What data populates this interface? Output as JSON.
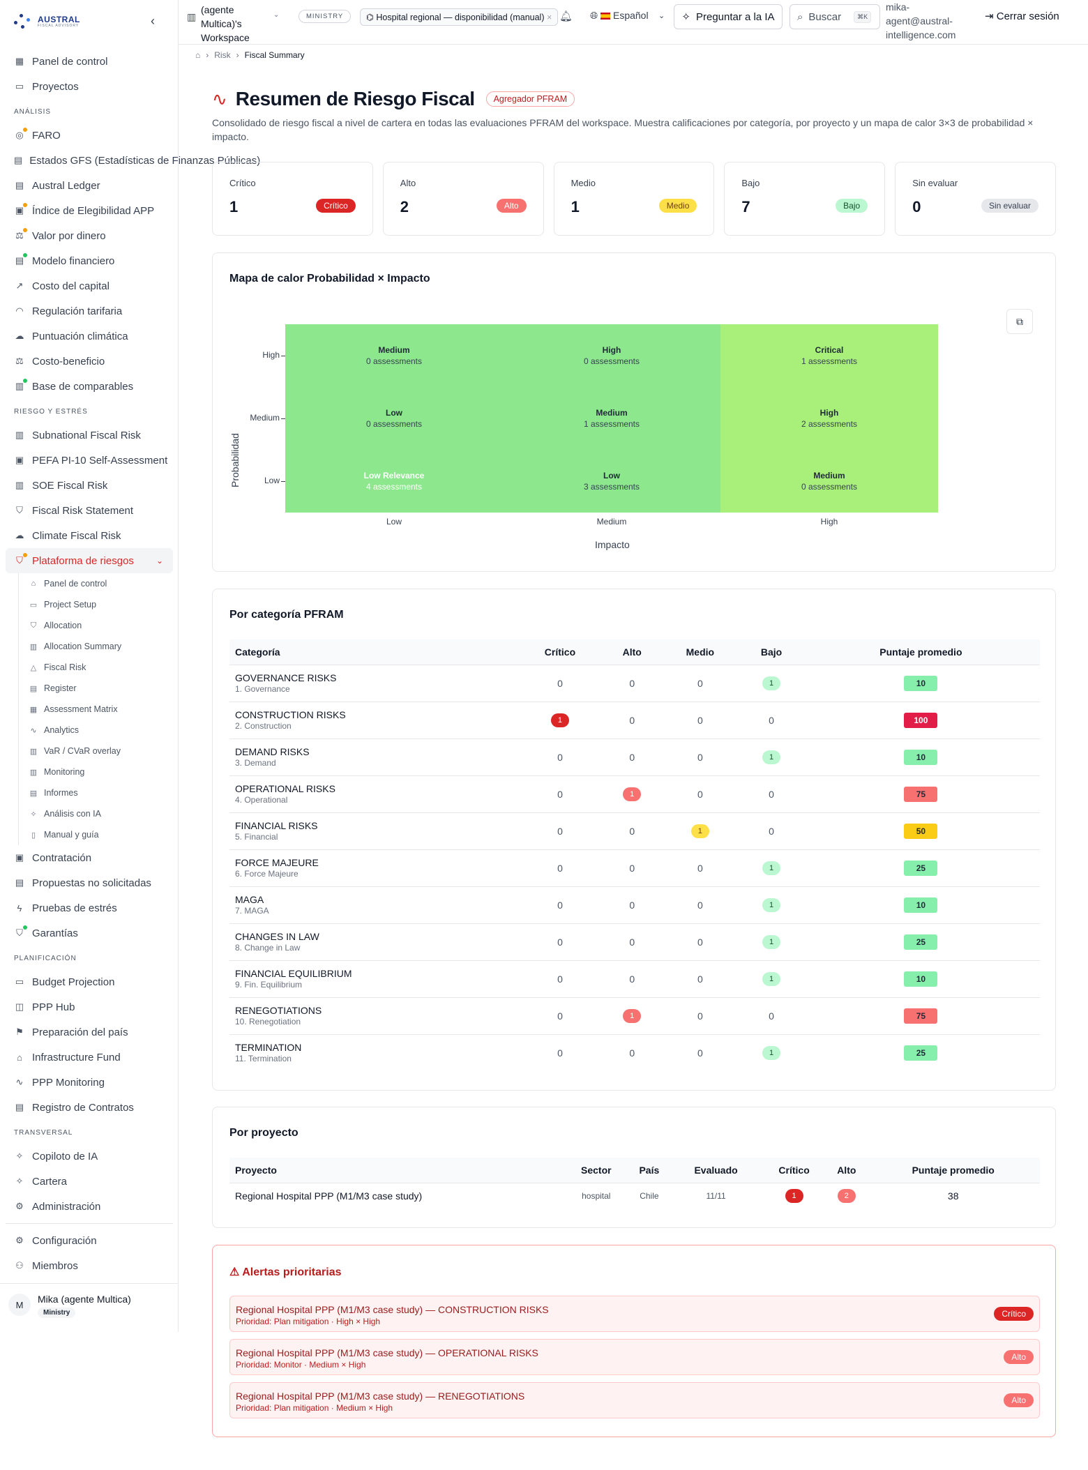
{
  "brand": {
    "name": "AUSTRAL",
    "tagline": "FISCAL ADVISORY"
  },
  "topbar": {
    "workspace": "(agente Multica)'s Workspace",
    "role_badge": "MINISTRY",
    "project_pill": "Hospital regional — disponibilidad (manual)",
    "language": "Español",
    "ask_ai": "Preguntar a la IA",
    "search": "Buscar",
    "shortcut": "⌘K",
    "email": "mika-agent@austral-intelligence.com",
    "logout": "Cerrar sesión"
  },
  "sidebar": {
    "top": [
      {
        "label": "Panel de control",
        "icon": "dashboard-icon"
      },
      {
        "label": "Proyectos",
        "icon": "folder-icon"
      }
    ],
    "sections": [
      {
        "title": "ANÁLISIS",
        "items": [
          {
            "label": "FARO",
            "icon": "compass-icon",
            "dot": "#f59e0b"
          },
          {
            "label": "Estados GFS (Estadísticas de Finanzas Públicas)",
            "icon": "doc-icon"
          },
          {
            "label": "Austral Ledger",
            "icon": "doc-icon"
          },
          {
            "label": "Índice de Elegibilidad APP",
            "icon": "clipboard-icon",
            "dot": "#f59e0b"
          },
          {
            "label": "Valor por dinero",
            "icon": "scale-icon",
            "dot": "#f59e0b"
          },
          {
            "label": "Modelo financiero",
            "icon": "doc-icon",
            "dot": "#22c55e"
          },
          {
            "label": "Costo del capital",
            "icon": "trend-icon"
          },
          {
            "label": "Regulación tarifaria",
            "icon": "gauge-icon"
          },
          {
            "label": "Puntuación climática",
            "icon": "cloud-icon"
          },
          {
            "label": "Costo-beneficio",
            "icon": "scale-icon"
          },
          {
            "label": "Base de comparables",
            "icon": "chart-icon",
            "dot": "#22c55e"
          }
        ]
      },
      {
        "title": "RIESGO Y ESTRÉS",
        "items": [
          {
            "label": "Subnational Fiscal Risk",
            "icon": "building-icon"
          },
          {
            "label": "PEFA PI-10 Self-Assessment",
            "icon": "clipboard-icon"
          },
          {
            "label": "SOE Fiscal Risk",
            "icon": "building-icon"
          },
          {
            "label": "Fiscal Risk Statement",
            "icon": "shield-icon"
          },
          {
            "label": "Climate Fiscal Risk",
            "icon": "cloud-icon"
          },
          {
            "label": "Plataforma de riesgos",
            "icon": "shield-icon",
            "dot": "#f59e0b",
            "active": true
          }
        ]
      }
    ],
    "subitems": [
      {
        "label": "Panel de control",
        "icon": "home-icon"
      },
      {
        "label": "Project Setup",
        "icon": "folder-icon"
      },
      {
        "label": "Allocation",
        "icon": "shield-icon"
      },
      {
        "label": "Allocation Summary",
        "icon": "chart-icon"
      },
      {
        "label": "Fiscal Risk",
        "icon": "warning-icon"
      },
      {
        "label": "Register",
        "icon": "doc-icon"
      },
      {
        "label": "Assessment Matrix",
        "icon": "grid-icon"
      },
      {
        "label": "Analytics",
        "icon": "activity-icon"
      },
      {
        "label": "VaR / CVaR overlay",
        "icon": "chart-icon"
      },
      {
        "label": "Monitoring",
        "icon": "chart-icon"
      },
      {
        "label": "Informes",
        "icon": "doc-icon"
      },
      {
        "label": "Análisis con IA",
        "icon": "sparkle-icon"
      },
      {
        "label": "Manual y guía",
        "icon": "book-icon"
      }
    ],
    "after": [
      {
        "label": "Contratación",
        "icon": "clipboard-icon"
      },
      {
        "label": "Propuestas no solicitadas",
        "icon": "doc-icon"
      },
      {
        "label": "Pruebas de estrés",
        "icon": "bolt-icon"
      },
      {
        "label": "Garantías",
        "icon": "shield-icon",
        "dot": "#22c55e"
      }
    ],
    "sections2": [
      {
        "title": "PLANIFICACIÓN",
        "items": [
          {
            "label": "Budget Projection",
            "icon": "wallet-icon"
          },
          {
            "label": "PPP Hub",
            "icon": "database-icon"
          },
          {
            "label": "Preparación del país",
            "icon": "flag-icon"
          },
          {
            "label": "Infrastructure Fund",
            "icon": "bank-icon"
          },
          {
            "label": "PPP Monitoring",
            "icon": "activity-icon"
          },
          {
            "label": "Registro de Contratos",
            "icon": "doc-icon"
          }
        ]
      },
      {
        "title": "TRANSVERSAL",
        "items": [
          {
            "label": "Copiloto de IA",
            "icon": "sparkle-icon"
          },
          {
            "label": "Cartera",
            "icon": "sparkle-icon"
          },
          {
            "label": "Administración",
            "icon": "gear-icon"
          }
        ]
      }
    ],
    "bottom": [
      {
        "label": "Configuración",
        "icon": "gear-icon"
      },
      {
        "label": "Miembros",
        "icon": "users-icon"
      }
    ],
    "user": {
      "initial": "M",
      "name": "Mika (agente Multica)",
      "role": "Ministry"
    }
  },
  "breadcrumb": {
    "items": [
      "Risk",
      "Fiscal Summary"
    ]
  },
  "page": {
    "title": "Resumen de Riesgo Fiscal",
    "tag": "Agregador PFRAM",
    "description": "Consolidado de riesgo fiscal a nivel de cartera en todas las evaluaciones PFRAM del workspace. Muestra calificaciones por categoría, por proyecto y un mapa de calor 3×3 de probabilidad × impacto."
  },
  "summary_cards": [
    {
      "label": "Crítico",
      "value": "1",
      "badge": "Crítico",
      "level": "crit"
    },
    {
      "label": "Alto",
      "value": "2",
      "badge": "Alto",
      "level": "alto"
    },
    {
      "label": "Medio",
      "value": "1",
      "badge": "Medio",
      "level": "medio"
    },
    {
      "label": "Bajo",
      "value": "7",
      "badge": "Bajo",
      "level": "bajo"
    },
    {
      "label": "Sin evaluar",
      "value": "0",
      "badge": "Sin evaluar",
      "level": "sin"
    }
  ],
  "heatmap": {
    "title": "Mapa de calor Probabilidad × Impacto",
    "ylabel": "Probabilidad",
    "xlabel": "Impacto",
    "y_ticks": [
      "High",
      "Medium",
      "Low"
    ],
    "x_ticks": [
      "Low",
      "Medium",
      "High"
    ],
    "colors": {
      "green": "#8de88d",
      "lime": "#a9f07a"
    },
    "cells": [
      {
        "row": 0,
        "col": 0,
        "label": "Medium",
        "count": "0 assessments",
        "color": "green"
      },
      {
        "row": 0,
        "col": 1,
        "label": "High",
        "count": "0 assessments",
        "color": "green"
      },
      {
        "row": 0,
        "col": 2,
        "label": "Critical",
        "count": "1 assessments",
        "color": "lime"
      },
      {
        "row": 1,
        "col": 0,
        "label": "Low",
        "count": "0 assessments",
        "color": "green"
      },
      {
        "row": 1,
        "col": 1,
        "label": "Medium",
        "count": "1 assessments",
        "color": "green"
      },
      {
        "row": 1,
        "col": 2,
        "label": "High",
        "count": "2 assessments",
        "color": "lime"
      },
      {
        "row": 2,
        "col": 0,
        "label": "Low Relevance",
        "count": "4 assessments",
        "color": "green",
        "white": true
      },
      {
        "row": 2,
        "col": 1,
        "label": "Low",
        "count": "3 assessments",
        "color": "green"
      },
      {
        "row": 2,
        "col": 2,
        "label": "Medium",
        "count": "0 assessments",
        "color": "lime"
      }
    ]
  },
  "category_table": {
    "title": "Por categoría PFRAM",
    "headers": [
      "Categoría",
      "Crítico",
      "Alto",
      "Medio",
      "Bajo",
      "Puntaje promedio"
    ],
    "rows": [
      {
        "name": "GOVERNANCE RISKS",
        "sub": "1. Governance",
        "c": "0",
        "a": "0",
        "m": "0",
        "b": "1",
        "score": "10",
        "sc": "#86efac"
      },
      {
        "name": "CONSTRUCTION RISKS",
        "sub": "2. Construction",
        "c": "1",
        "a": "0",
        "m": "0",
        "b": "0",
        "score": "100",
        "sc": "#e11d48"
      },
      {
        "name": "DEMAND RISKS",
        "sub": "3. Demand",
        "c": "0",
        "a": "0",
        "m": "0",
        "b": "1",
        "score": "10",
        "sc": "#86efac"
      },
      {
        "name": "OPERATIONAL RISKS",
        "sub": "4. Operational",
        "c": "0",
        "a": "1",
        "m": "0",
        "b": "0",
        "score": "75",
        "sc": "#f87171"
      },
      {
        "name": "FINANCIAL RISKS",
        "sub": "5. Financial",
        "c": "0",
        "a": "0",
        "m": "1",
        "b": "0",
        "score": "50",
        "sc": "#facc15"
      },
      {
        "name": "FORCE MAJEURE",
        "sub": "6. Force Majeure",
        "c": "0",
        "a": "0",
        "m": "0",
        "b": "1",
        "score": "25",
        "sc": "#86efac"
      },
      {
        "name": "MAGA",
        "sub": "7. MAGA",
        "c": "0",
        "a": "0",
        "m": "0",
        "b": "1",
        "score": "10",
        "sc": "#86efac"
      },
      {
        "name": "CHANGES IN LAW",
        "sub": "8. Change in Law",
        "c": "0",
        "a": "0",
        "m": "0",
        "b": "1",
        "score": "25",
        "sc": "#86efac"
      },
      {
        "name": "FINANCIAL EQUILIBRIUM",
        "sub": "9. Fin. Equilibrium",
        "c": "0",
        "a": "0",
        "m": "0",
        "b": "1",
        "score": "10",
        "sc": "#86efac"
      },
      {
        "name": "RENEGOTIATIONS",
        "sub": "10. Renegotiation",
        "c": "0",
        "a": "1",
        "m": "0",
        "b": "0",
        "score": "75",
        "sc": "#f87171"
      },
      {
        "name": "TERMINATION",
        "sub": "11. Termination",
        "c": "0",
        "a": "0",
        "m": "0",
        "b": "1",
        "score": "25",
        "sc": "#86efac"
      }
    ]
  },
  "project_table": {
    "title": "Por proyecto",
    "headers": [
      "Proyecto",
      "Sector",
      "País",
      "Evaluado",
      "Crítico",
      "Alto",
      "Puntaje promedio"
    ],
    "rows": [
      {
        "name": "Regional Hospital PPP (M1/M3 case study)",
        "sector": "hospital",
        "country": "Chile",
        "evaluated": "11/11",
        "crit": "1",
        "alto": "2",
        "score": "38"
      }
    ]
  },
  "alerts": {
    "title": "Alertas prioritarias",
    "items": [
      {
        "title": "Regional Hospital PPP (M1/M3 case study) — CONSTRUCTION RISKS",
        "sub": "Prioridad: Plan mitigation · High × High",
        "badge": "Crítico",
        "level": "crit"
      },
      {
        "title": "Regional Hospital PPP (M1/M3 case study) — OPERATIONAL RISKS",
        "sub": "Prioridad: Monitor · Medium × High",
        "badge": "Alto",
        "level": "alto"
      },
      {
        "title": "Regional Hospital PPP (M1/M3 case study) — RENEGOTIATIONS",
        "sub": "Prioridad: Plan mitigation · Medium × High",
        "badge": "Alto",
        "level": "alto"
      }
    ]
  }
}
